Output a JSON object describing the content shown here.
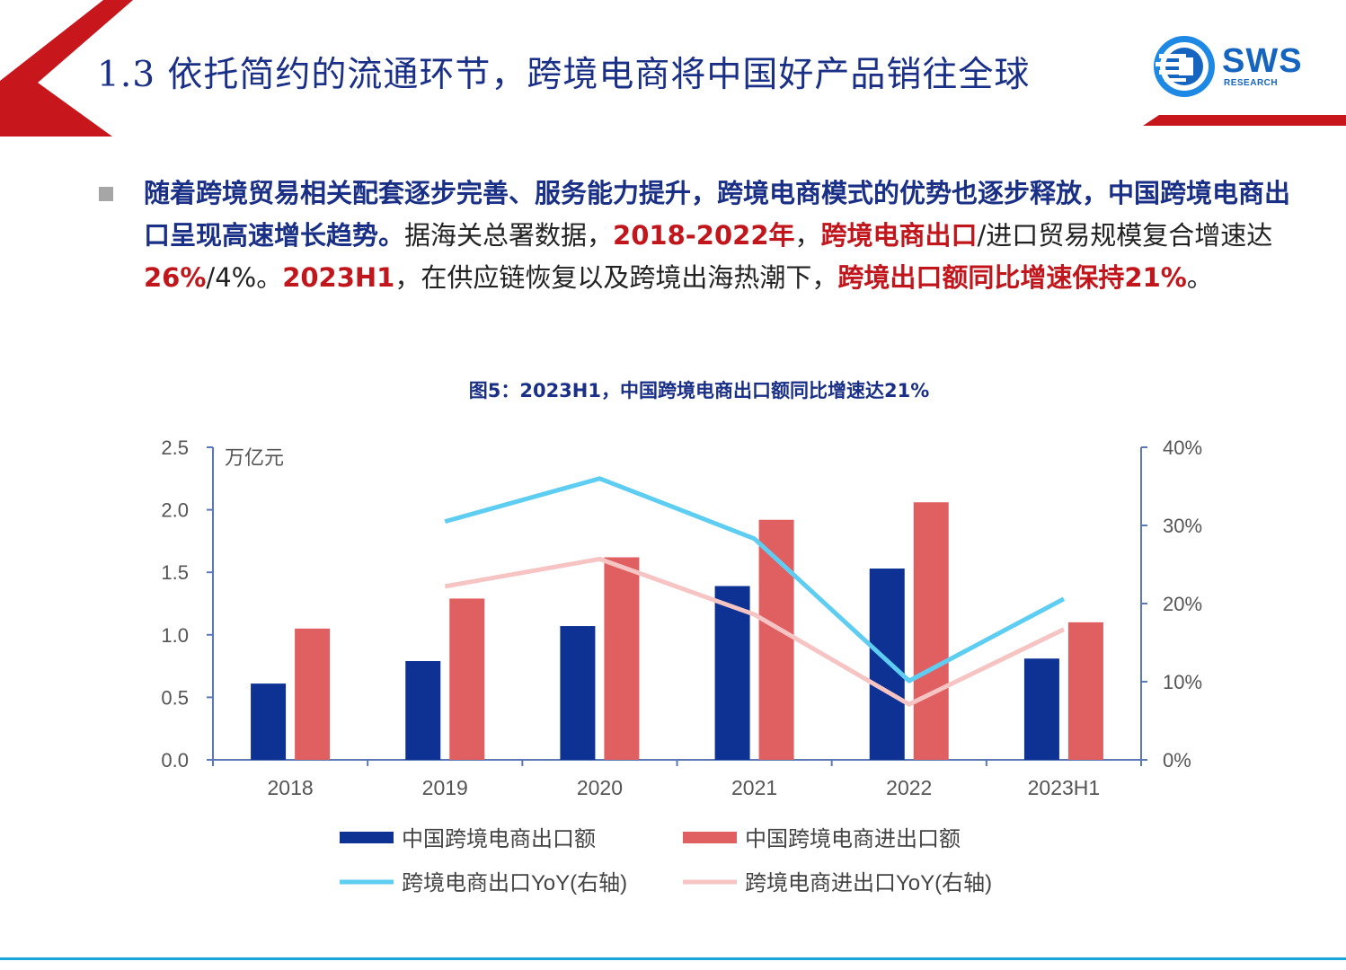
{
  "header": {
    "title": "1.3 依托简约的流通环节，跨境电商将中国好产品销往全球",
    "logo_text": "SWS",
    "logo_sub": "RESEARCH",
    "accent_color": "#c8161d",
    "title_color": "#1a2f86"
  },
  "body": {
    "segments": [
      {
        "text": "随着跨境贸易相关配套逐步完善、服务能力提升，跨境电商模式的优势也逐步释放，中国跨境电商出口呈现高速增长趋势。",
        "style": "b"
      },
      {
        "text": "据海关总署数据，",
        "style": "n"
      },
      {
        "text": "2018-2022年",
        "style": "r"
      },
      {
        "text": "，",
        "style": "n"
      },
      {
        "text": "跨境电商出口",
        "style": "r"
      },
      {
        "text": "/进口贸易规模复合增速达",
        "style": "n"
      },
      {
        "text": "26%",
        "style": "r"
      },
      {
        "text": "/4%。",
        "style": "n"
      },
      {
        "text": "2023H1",
        "style": "r"
      },
      {
        "text": "，在供应链恢复以及跨境出海热潮下，",
        "style": "n"
      },
      {
        "text": "跨境出口额同比增速保持21%",
        "style": "r"
      },
      {
        "text": "。",
        "style": "n"
      }
    ]
  },
  "figure": {
    "title": "图5：2023H1，中国跨境电商出口额同比增速达21%"
  },
  "chart_data": {
    "type": "bar",
    "categories": [
      "2018",
      "2019",
      "2020",
      "2021",
      "2022",
      "2023H1"
    ],
    "y_left": {
      "unit_label": "万亿元",
      "ticks": [
        "0.0",
        "0.5",
        "1.0",
        "1.5",
        "2.0",
        "2.5"
      ],
      "ylim": [
        0,
        2.5
      ]
    },
    "y_right": {
      "ticks": [
        "0%",
        "10%",
        "20%",
        "30%",
        "40%"
      ],
      "ylim": [
        0,
        40
      ]
    },
    "series": [
      {
        "name": "中国跨境电商出口额",
        "kind": "bar",
        "axis": "left",
        "color": "#0d3294",
        "values": [
          0.61,
          0.79,
          1.07,
          1.39,
          1.53,
          0.81
        ]
      },
      {
        "name": "中国跨境电商进出口额",
        "kind": "bar",
        "axis": "left",
        "color": "#e06062",
        "values": [
          1.05,
          1.29,
          1.62,
          1.92,
          2.06,
          1.1
        ]
      },
      {
        "name": "跨境电商出口YoY(右轴)",
        "kind": "line",
        "axis": "right",
        "color": "#5ecdf2",
        "values": [
          null,
          30.5,
          36.0,
          28.3,
          10.1,
          20.6
        ]
      },
      {
        "name": "跨境电商进出口YoY(右轴)",
        "kind": "line",
        "axis": "right",
        "color": "#f7c4c4",
        "values": [
          null,
          22.2,
          25.7,
          18.6,
          7.1,
          16.7
        ]
      }
    ],
    "legend_position": "bottom",
    "grid": false
  }
}
